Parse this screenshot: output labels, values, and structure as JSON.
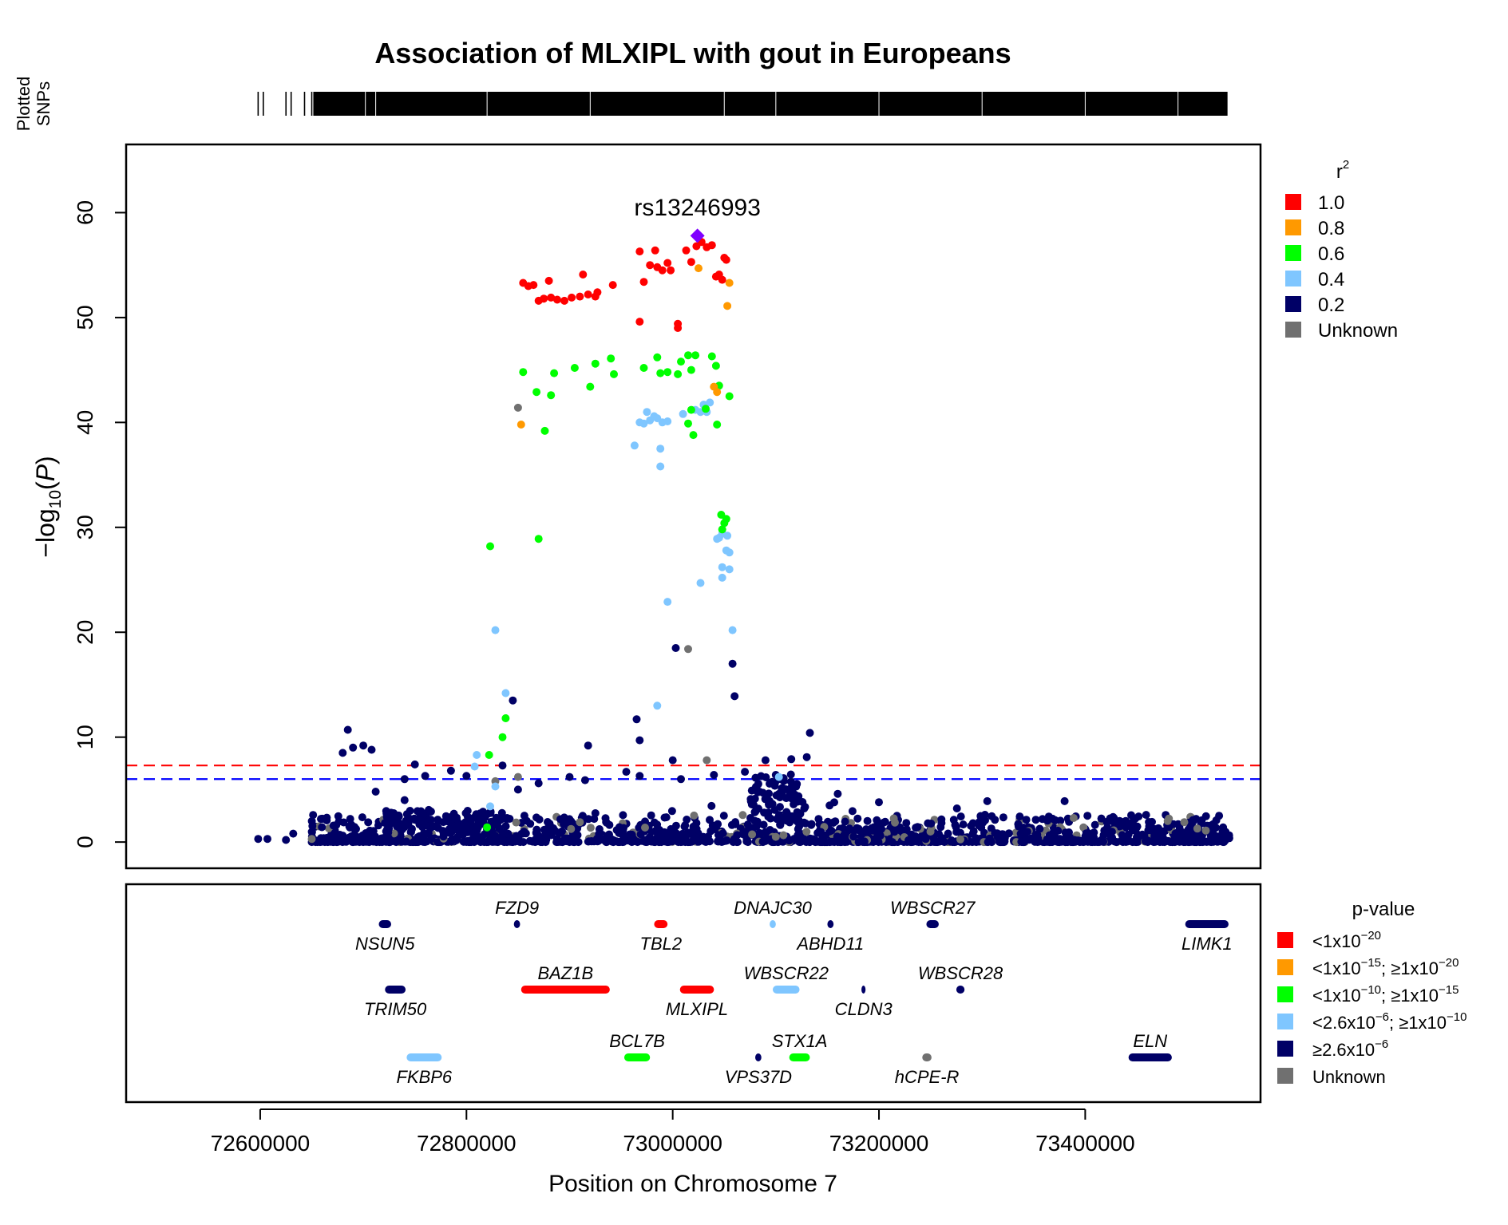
{
  "chart_data": {
    "type": "scatter",
    "title": "Association of MLXIPL with gout in Europeans",
    "xlabel": "Position on Chromosome 7",
    "ylabel_prefix": "−log",
    "ylabel_sub": "10",
    "ylabel_var": "P",
    "rug_label_1": "Plotted",
    "rug_label_2": "SNPs",
    "xlim": [
      72470000,
      73570000
    ],
    "ylim": [
      -2.5,
      66.5
    ],
    "xticks": [
      72600000,
      72800000,
      73000000,
      73200000,
      73400000
    ],
    "yticks": [
      0,
      10,
      20,
      30,
      40,
      50,
      60
    ],
    "thresholds": [
      {
        "y": 7.3,
        "color": "#ff0000",
        "name": "genome-wide-threshold-line"
      },
      {
        "y": 6.0,
        "color": "#0000ff",
        "name": "suggestive-threshold-line"
      }
    ],
    "lead_snp": {
      "label": "rs13246993",
      "x": 73024000,
      "y": 57.8,
      "color": "#7f00ff"
    },
    "colors": {
      "r1": "#ff0000",
      "r08": "#ff9900",
      "r06": "#00ff00",
      "r04": "#7fc6ff",
      "r02": "#000066",
      "unknown": "#707070"
    },
    "r2_legend": {
      "title": "r",
      "title_sup": "2",
      "items": [
        {
          "label": "1.0",
          "color": "#ff0000"
        },
        {
          "label": "0.8",
          "color": "#ff9900"
        },
        {
          "label": "0.6",
          "color": "#00ff00"
        },
        {
          "label": "0.4",
          "color": "#7fc6ff"
        },
        {
          "label": "0.2",
          "color": "#000066"
        },
        {
          "label": "Unknown",
          "color": "#707070"
        }
      ]
    },
    "pvalue_legend": {
      "title": "p-value",
      "items": [
        {
          "color": "#ff0000",
          "parts": [
            [
              "n",
              "<1x10"
            ],
            [
              "s",
              "−20"
            ]
          ]
        },
        {
          "color": "#ff9900",
          "parts": [
            [
              "n",
              "<1x10"
            ],
            [
              "s",
              "−15"
            ],
            [
              "n",
              "; ≥1x10"
            ],
            [
              "s",
              "−20"
            ]
          ]
        },
        {
          "color": "#00ff00",
          "parts": [
            [
              "n",
              "<1x10"
            ],
            [
              "s",
              "−10"
            ],
            [
              "n",
              "; ≥1x10"
            ],
            [
              "s",
              "−15"
            ]
          ]
        },
        {
          "color": "#7fc6ff",
          "parts": [
            [
              "n",
              "<2.6x10"
            ],
            [
              "s",
              "−6"
            ],
            [
              "n",
              "; ≥1x10"
            ],
            [
              "s",
              "−10"
            ]
          ]
        },
        {
          "color": "#000066",
          "parts": [
            [
              "n",
              "≥2.6x10"
            ],
            [
              "s",
              "−6"
            ]
          ]
        },
        {
          "color": "#707070",
          "parts": [
            [
              "n",
              "Unknown"
            ]
          ]
        }
      ]
    },
    "genes": [
      {
        "name": "NSUN5",
        "start": 72715000,
        "end": 72727000,
        "row": 0,
        "label_pos": "below",
        "color": "#000066"
      },
      {
        "name": "FZD9",
        "start": 72846000,
        "end": 72852000,
        "row": 0,
        "label_pos": "above",
        "color": "#000066"
      },
      {
        "name": "TBL2",
        "start": 72982000,
        "end": 72995000,
        "row": 0,
        "label_pos": "below",
        "color": "#ff0000"
      },
      {
        "name": "DNAJC30",
        "start": 73094000,
        "end": 73100000,
        "row": 0,
        "label_pos": "above",
        "color": "#7fc6ff"
      },
      {
        "name": "ABHD11",
        "start": 73150000,
        "end": 73156000,
        "row": 0,
        "label_pos": "below",
        "color": "#000066"
      },
      {
        "name": "WBSCR27",
        "start": 73246000,
        "end": 73258000,
        "row": 0,
        "label_pos": "above",
        "color": "#000066"
      },
      {
        "name": "LIMK1",
        "start": 73497000,
        "end": 73539000,
        "row": 0,
        "label_pos": "below",
        "color": "#000066"
      },
      {
        "name": "TRIM50",
        "start": 72721000,
        "end": 72741000,
        "row": 1,
        "label_pos": "below",
        "color": "#000066"
      },
      {
        "name": "BAZ1B",
        "start": 72853000,
        "end": 72939000,
        "row": 1,
        "label_pos": "above",
        "color": "#ff0000"
      },
      {
        "name": "MLXIPL",
        "start": 73007000,
        "end": 73040000,
        "row": 1,
        "label_pos": "below",
        "color": "#ff0000"
      },
      {
        "name": "WBSCR22",
        "start": 73097000,
        "end": 73123000,
        "row": 1,
        "label_pos": "above",
        "color": "#7fc6ff"
      },
      {
        "name": "CLDN3",
        "start": 73183000,
        "end": 73187000,
        "row": 1,
        "label_pos": "below",
        "color": "#000066"
      },
      {
        "name": "WBSCR28",
        "start": 73275000,
        "end": 73283000,
        "row": 1,
        "label_pos": "above",
        "color": "#000066"
      },
      {
        "name": "FKBP6",
        "start": 72742000,
        "end": 72776000,
        "row": 2,
        "label_pos": "below",
        "color": "#7fc6ff"
      },
      {
        "name": "BCL7B",
        "start": 72953000,
        "end": 72978000,
        "row": 2,
        "label_pos": "above",
        "color": "#00ff00"
      },
      {
        "name": "VPS37D",
        "start": 73080000,
        "end": 73086000,
        "row": 2,
        "label_pos": "below",
        "color": "#000066"
      },
      {
        "name": "STX1A",
        "start": 73113000,
        "end": 73133000,
        "row": 2,
        "label_pos": "above",
        "color": "#00ff00"
      },
      {
        "name": "hCPE-R",
        "start": 73242000,
        "end": 73251000,
        "row": 2,
        "label_pos": "below",
        "color": "#707070"
      },
      {
        "name": "ELN",
        "start": 73442000,
        "end": 73484000,
        "row": 2,
        "label_pos": "above",
        "color": "#000066"
      }
    ],
    "series": [
      {
        "name": "r2 1.0",
        "color": "#ff0000",
        "points": [
          [
            72855000,
            53.3
          ],
          [
            72860000,
            53.0
          ],
          [
            72865000,
            53.1
          ],
          [
            72870000,
            51.6
          ],
          [
            72875000,
            51.8
          ],
          [
            72880000,
            53.5
          ],
          [
            72882000,
            51.9
          ],
          [
            72888000,
            51.7
          ],
          [
            72895000,
            51.6
          ],
          [
            72902000,
            51.9
          ],
          [
            72910000,
            52.0
          ],
          [
            72913000,
            54.1
          ],
          [
            72918000,
            52.2
          ],
          [
            72925000,
            52.0
          ],
          [
            72927000,
            52.4
          ],
          [
            72942000,
            53.1
          ],
          [
            72968000,
            56.3
          ],
          [
            72972000,
            53.4
          ],
          [
            72978000,
            55.0
          ],
          [
            72983000,
            56.4
          ],
          [
            72985000,
            54.8
          ],
          [
            72990000,
            54.5
          ],
          [
            72995000,
            55.2
          ],
          [
            72998000,
            54.5
          ],
          [
            72968000,
            49.6
          ],
          [
            73005000,
            49.4
          ],
          [
            73005000,
            49.0
          ],
          [
            73013000,
            56.4
          ],
          [
            73018000,
            55.3
          ],
          [
            73023000,
            56.8
          ],
          [
            73028000,
            57.2
          ],
          [
            73033000,
            56.7
          ],
          [
            73038000,
            56.9
          ],
          [
            73042000,
            53.9
          ],
          [
            73045000,
            54.1
          ],
          [
            73050000,
            55.7
          ],
          [
            73052000,
            55.5
          ],
          [
            73048000,
            53.6
          ]
        ]
      },
      {
        "name": "r2 0.8",
        "color": "#ff9900",
        "points": [
          [
            72853000,
            39.8
          ],
          [
            73025000,
            54.7
          ],
          [
            73040000,
            43.4
          ],
          [
            73043000,
            42.9
          ],
          [
            73055000,
            53.3
          ],
          [
            73053000,
            51.1
          ]
        ]
      },
      {
        "name": "r2 0.6",
        "color": "#00ff00",
        "points": [
          [
            72855000,
            44.8
          ],
          [
            72868000,
            42.9
          ],
          [
            72876000,
            39.2
          ],
          [
            72882000,
            42.6
          ],
          [
            72885000,
            44.7
          ],
          [
            72905000,
            45.2
          ],
          [
            72920000,
            43.4
          ],
          [
            72925000,
            45.6
          ],
          [
            72940000,
            46.1
          ],
          [
            72943000,
            44.6
          ],
          [
            72972000,
            45.2
          ],
          [
            72985000,
            46.2
          ],
          [
            72988000,
            44.7
          ],
          [
            72995000,
            44.8
          ],
          [
            73005000,
            44.6
          ],
          [
            73008000,
            45.8
          ],
          [
            73015000,
            46.4
          ],
          [
            73018000,
            45.0
          ],
          [
            73022000,
            46.4
          ],
          [
            73018000,
            41.2
          ],
          [
            73015000,
            39.9
          ],
          [
            73020000,
            38.8
          ],
          [
            73032000,
            41.3
          ],
          [
            73038000,
            46.3
          ],
          [
            73042000,
            45.4
          ],
          [
            73045000,
            43.5
          ],
          [
            73043000,
            39.8
          ],
          [
            73055000,
            42.5
          ],
          [
            73047000,
            31.2
          ],
          [
            73052000,
            30.8
          ],
          [
            73050000,
            30.4
          ],
          [
            73048000,
            29.8
          ],
          [
            72870000,
            28.9
          ],
          [
            72823000,
            28.2
          ],
          [
            72820000,
            1.4
          ],
          [
            72822000,
            8.3
          ],
          [
            72835000,
            10.0
          ],
          [
            72838000,
            11.8
          ]
        ]
      },
      {
        "name": "r2 0.4",
        "color": "#7fc6ff",
        "points": [
          [
            72968000,
            40.0
          ],
          [
            72972000,
            39.9
          ],
          [
            72975000,
            41.0
          ],
          [
            72978000,
            40.2
          ],
          [
            72982000,
            40.6
          ],
          [
            72985000,
            40.4
          ],
          [
            72990000,
            40.0
          ],
          [
            72995000,
            40.1
          ],
          [
            73010000,
            40.8
          ],
          [
            73022000,
            41.2
          ],
          [
            73027000,
            41.0
          ],
          [
            73030000,
            41.7
          ],
          [
            73033000,
            41.0
          ],
          [
            73036000,
            41.9
          ],
          [
            72963000,
            37.8
          ],
          [
            72988000,
            37.5
          ],
          [
            72988000,
            35.8
          ],
          [
            73043000,
            28.9
          ],
          [
            73045000,
            29.0
          ],
          [
            73048000,
            29.4
          ],
          [
            73052000,
            27.8
          ],
          [
            73053000,
            29.2
          ],
          [
            73055000,
            27.6
          ],
          [
            73048000,
            26.2
          ],
          [
            73055000,
            26.0
          ],
          [
            73048000,
            25.2
          ],
          [
            73027000,
            24.7
          ],
          [
            73058000,
            20.2
          ],
          [
            72995000,
            22.9
          ],
          [
            72828000,
            20.2
          ],
          [
            72838000,
            14.2
          ],
          [
            72985000,
            13.0
          ],
          [
            72810000,
            8.3
          ],
          [
            72808000,
            7.2
          ],
          [
            72823000,
            3.4
          ],
          [
            72828000,
            5.3
          ],
          [
            73103000,
            6.2
          ]
        ]
      },
      {
        "name": "r2 0.2",
        "color": "#000066",
        "points": [
          [
            73003000,
            18.5
          ],
          [
            73058000,
            17.0
          ],
          [
            73060000,
            13.9
          ],
          [
            72845000,
            13.5
          ],
          [
            72965000,
            11.7
          ],
          [
            72968000,
            9.7
          ],
          [
            73133000,
            10.4
          ],
          [
            72685000,
            10.7
          ],
          [
            72680000,
            8.5
          ],
          [
            72690000,
            9.0
          ],
          [
            72700000,
            9.2
          ],
          [
            72708000,
            8.8
          ],
          [
            72918000,
            9.2
          ],
          [
            72955000,
            6.7
          ],
          [
            73000000,
            7.8
          ],
          [
            73090000,
            7.8
          ],
          [
            73115000,
            7.9
          ],
          [
            73130000,
            8.1
          ],
          [
            72740000,
            6.0
          ],
          [
            72750000,
            7.4
          ],
          [
            72760000,
            6.3
          ],
          [
            72785000,
            6.8
          ],
          [
            72800000,
            6.3
          ],
          [
            72835000,
            7.3
          ],
          [
            72850000,
            5.0
          ],
          [
            72870000,
            5.6
          ],
          [
            72900000,
            6.2
          ],
          [
            72915000,
            5.9
          ],
          [
            72968000,
            6.3
          ],
          [
            73008000,
            6.0
          ],
          [
            73040000,
            6.4
          ],
          [
            73070000,
            6.7
          ],
          [
            73100000,
            6.4
          ],
          [
            73115000,
            5.2
          ],
          [
            73160000,
            4.6
          ],
          [
            73200000,
            3.8
          ],
          [
            73305000,
            3.9
          ],
          [
            73380000,
            3.9
          ],
          [
            72712000,
            4.8
          ],
          [
            72740000,
            4.0
          ]
        ]
      },
      {
        "name": "unknown",
        "color": "#707070",
        "points": [
          [
            72850000,
            41.4
          ],
          [
            73015000,
            18.4
          ],
          [
            73033000,
            7.8
          ],
          [
            72828000,
            5.8
          ],
          [
            72850000,
            6.2
          ],
          [
            72650000,
            0.3
          ],
          [
            73480000,
            2.0
          ],
          [
            72910000,
            1.9
          ],
          [
            73100000,
            0.5
          ],
          [
            73250000,
            1.0
          ]
        ]
      }
    ]
  }
}
